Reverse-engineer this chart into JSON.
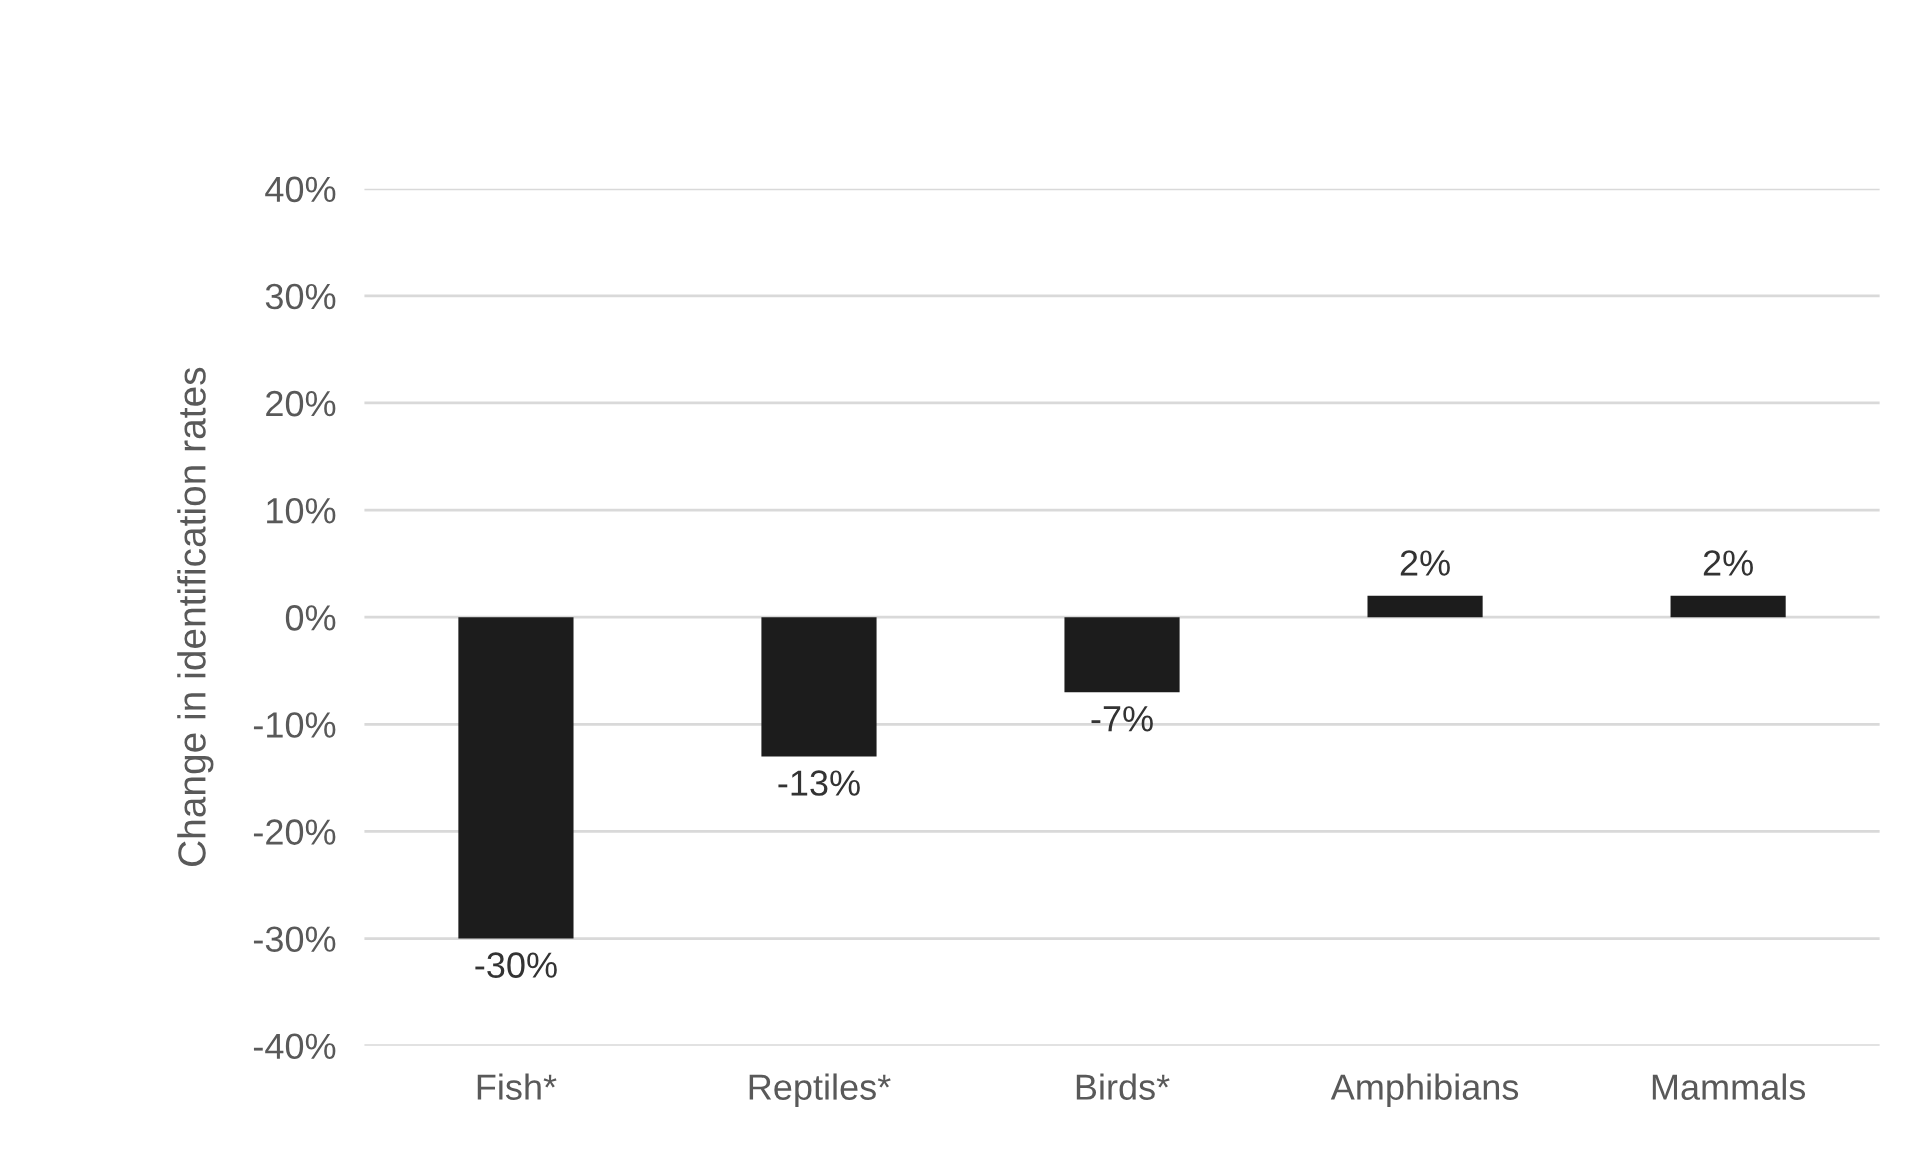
{
  "chart_data": {
    "type": "bar",
    "ylabel": "Change in identification rates",
    "categories": [
      "Fish*",
      "Reptiles*",
      "Birds*",
      "Amphibians",
      "Mammals"
    ],
    "values": [
      -30,
      -13,
      -7,
      2,
      2
    ],
    "value_labels": [
      "-30%",
      "-13%",
      "-7%",
      "2%",
      "2%"
    ],
    "color": "#1c1c1c",
    "ylim": [
      -40,
      40
    ],
    "yticks": [
      {
        "value": 40,
        "label": "40%"
      },
      {
        "value": 30,
        "label": "30%"
      },
      {
        "value": 20,
        "label": "20%"
      },
      {
        "value": 10,
        "label": "10%"
      },
      {
        "value": 0,
        "label": "0%"
      },
      {
        "value": -10,
        "label": "-10%"
      },
      {
        "value": -20,
        "label": "-20%"
      },
      {
        "value": -30,
        "label": "-30%"
      },
      {
        "value": -40,
        "label": "-40%"
      }
    ],
    "grid": "y",
    "legend": false
  }
}
